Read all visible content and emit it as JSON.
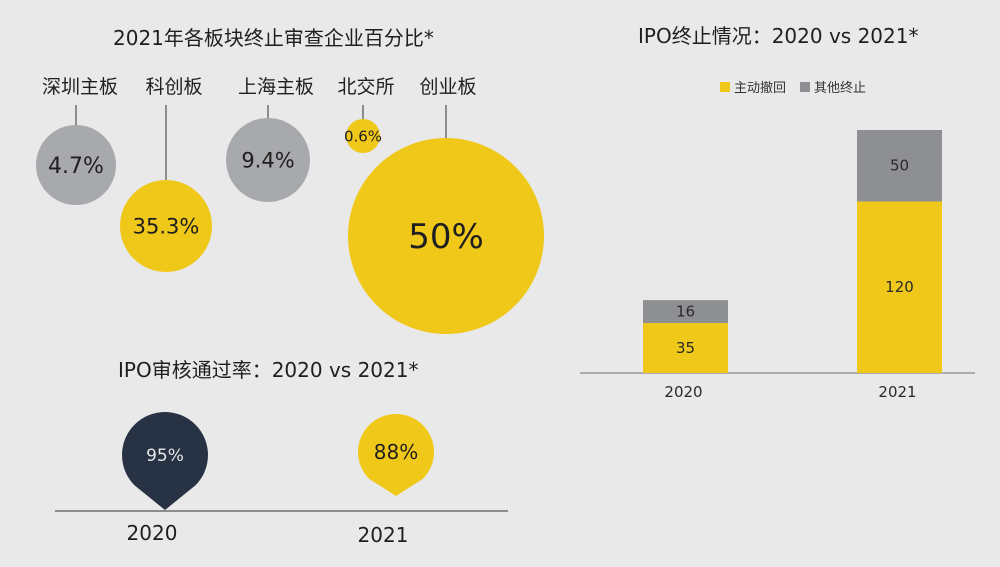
{
  "colors": {
    "yellow": "#f0c81a",
    "gray": "#a8a9ad",
    "navy": "#283245",
    "line": "#6d6e70"
  },
  "chart_data": [
    {
      "type": "bubble",
      "title": "2021年各板块终止审查企业百分比*",
      "items": [
        {
          "label": "深圳主板",
          "value": "4.7%",
          "color": "gray"
        },
        {
          "label": "科创板",
          "value": "35.3%",
          "color": "yellow"
        },
        {
          "label": "上海主板",
          "value": "9.4%",
          "color": "gray"
        },
        {
          "label": "北交所",
          "value": "0.6%",
          "color": "yellow"
        },
        {
          "label": "创业板",
          "value": "50%",
          "color": "yellow"
        }
      ]
    },
    {
      "type": "pin",
      "title": "IPO审核通过率：2020 vs 2021*",
      "items": [
        {
          "year": "2020",
          "value": "95%",
          "color": "navy"
        },
        {
          "year": "2021",
          "value": "88%",
          "color": "yellow"
        }
      ]
    },
    {
      "type": "stacked-bar",
      "title": "IPO终止情况：2020 vs 2021*",
      "categories": [
        "2020",
        "2021"
      ],
      "series": [
        {
          "name": "主动撤回",
          "values": [
            35,
            120
          ],
          "color": "yellow"
        },
        {
          "name": "其他终止",
          "values": [
            16,
            50
          ],
          "color": "gray"
        }
      ],
      "legend_position": "top"
    }
  ]
}
